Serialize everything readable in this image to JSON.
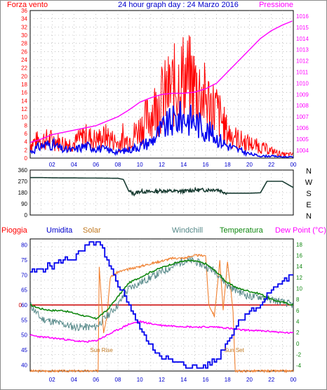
{
  "header": {
    "left_label": "Forza vento",
    "title": "24 hour graph day : 24 Marzo 2016",
    "right_label": "Pressione"
  },
  "chart_data": [
    {
      "type": "line",
      "x_ticks": [
        "02",
        "04",
        "06",
        "08",
        "10",
        "12",
        "14",
        "16",
        "18",
        "20",
        "22",
        "00"
      ],
      "xlim": [
        0,
        24
      ],
      "y_left": {
        "label": "Forza vento",
        "ticks": [
          "0",
          "2",
          "4",
          "6",
          "8",
          "10",
          "12",
          "14",
          "16",
          "18",
          "20",
          "22",
          "24",
          "26",
          "28",
          "30",
          "32",
          "34",
          "36"
        ],
        "ylim": [
          0,
          36
        ]
      },
      "y_right": {
        "label": "Pressione",
        "ticks": [
          "1004",
          "1005",
          "1006",
          "1007",
          "1008",
          "1009",
          "1010",
          "1011",
          "1012",
          "1013",
          "1014",
          "1015",
          "1016"
        ],
        "ylim": [
          1003.3,
          1016.5
        ]
      },
      "colors": {
        "gust": "#ff0000",
        "speed": "#0000ee",
        "pressure": "#ff00ff"
      },
      "series": [
        {
          "key": "gust",
          "x": [
            0,
            1,
            2,
            3,
            4,
            5,
            6,
            7,
            8,
            9,
            10,
            11,
            12,
            13,
            14,
            15,
            16,
            17,
            18,
            19,
            20,
            21,
            22,
            23,
            24
          ],
          "values": [
            4,
            5,
            5,
            4,
            4,
            6,
            5,
            6,
            4,
            5,
            8,
            12,
            16,
            19,
            22,
            20,
            16,
            13,
            7,
            5,
            4,
            3,
            2,
            1,
            1
          ]
        },
        {
          "key": "speed",
          "x": [
            0,
            1,
            2,
            3,
            4,
            5,
            6,
            7,
            8,
            9,
            10,
            11,
            12,
            13,
            14,
            15,
            16,
            17,
            18,
            19,
            20,
            21,
            22,
            23,
            24
          ],
          "values": [
            1.5,
            3,
            3.5,
            2,
            2,
            3,
            2.5,
            2,
            1.5,
            2,
            3,
            4,
            7,
            9,
            10,
            9,
            7,
            5,
            3,
            2,
            1,
            0.5,
            0.5,
            0.3,
            0.3
          ]
        },
        {
          "key": "pressure",
          "x": [
            0,
            1,
            2,
            3,
            4,
            5,
            6,
            7,
            8,
            9,
            10,
            11,
            12,
            13,
            14,
            15,
            16,
            17,
            18,
            19,
            20,
            21,
            22,
            23,
            24
          ],
          "values": [
            1004.7,
            1005.0,
            1005.4,
            1005.6,
            1005.8,
            1006.0,
            1006.2,
            1006.6,
            1007.0,
            1007.6,
            1008.3,
            1008.7,
            1009.0,
            1009.1,
            1009.1,
            1009.2,
            1009.5,
            1010.0,
            1011.0,
            1012.0,
            1013.0,
            1014.0,
            1014.7,
            1015.2,
            1015.6
          ]
        }
      ]
    },
    {
      "type": "line",
      "y_left": {
        "ticks": [
          "0",
          "90",
          "180",
          "270",
          "360"
        ],
        "ylim": [
          0,
          360
        ]
      },
      "y_right_labels": [
        "N",
        "W",
        "S",
        "E",
        "N"
      ],
      "colors": {
        "direction": "#1a3d33"
      },
      "series": [
        {
          "key": "direction",
          "x": [
            0,
            1,
            2,
            3,
            4,
            5,
            6,
            7,
            8,
            8.5,
            9,
            9.5,
            10,
            11,
            12,
            13,
            14,
            15,
            16,
            17,
            18,
            19,
            20,
            21,
            21.6,
            22,
            23,
            24
          ],
          "values": [
            300,
            300,
            298,
            297,
            297,
            296,
            296,
            295,
            294,
            285,
            190,
            170,
            190,
            185,
            195,
            190,
            190,
            200,
            200,
            205,
            175,
            175,
            175,
            178,
            270,
            270,
            270,
            220
          ]
        }
      ]
    },
    {
      "type": "line",
      "legend": [
        "Pioggia",
        "Umidita",
        "Solar",
        "Windchill",
        "Temperatura",
        "Dew Point (°C)"
      ],
      "annotations": [
        "Sun Rise",
        "Sun Set"
      ],
      "annotation_x": [
        6.5,
        18.6
      ],
      "x_ticks": [
        "02",
        "04",
        "06",
        "08",
        "10",
        "12",
        "14",
        "16",
        "18",
        "20",
        "22",
        "00"
      ],
      "xlim": [
        0,
        24
      ],
      "y_left": {
        "ticks": [
          "40",
          "45",
          "50",
          "55",
          "60",
          "65",
          "70",
          "75",
          "80"
        ],
        "ylim": [
          38,
          82
        ],
        "rain_marker": "0"
      },
      "y_right": {
        "ticks": [
          "-4",
          "-2",
          "0",
          "2",
          "4",
          "6",
          "8",
          "10",
          "12",
          "14",
          "16",
          "18"
        ],
        "ylim": [
          -5,
          19
        ]
      },
      "colors": {
        "rain": "#cc0000",
        "humidity": "#0000ee",
        "solar": "#f08030",
        "windchill": "#558888",
        "temperature": "#118811",
        "dewpoint": "#ff00ff"
      },
      "series": [
        {
          "key": "humidity",
          "x": [
            0,
            1,
            2,
            3,
            4,
            5,
            5.5,
            6,
            6.5,
            7,
            8,
            9,
            10,
            11,
            12,
            13,
            14,
            15,
            16,
            17,
            18,
            19,
            20,
            21,
            22,
            23,
            24
          ],
          "values": [
            71,
            72,
            73,
            75,
            76,
            79,
            80,
            81,
            79,
            74,
            67,
            60,
            52,
            46,
            43,
            41,
            40,
            39,
            40,
            42,
            48,
            55,
            58,
            60,
            65,
            68,
            70
          ]
        },
        {
          "key": "solar",
          "x": [
            0,
            6.2,
            6.3,
            6.5,
            6.7,
            7,
            7.3,
            8,
            9,
            10,
            11,
            12,
            13,
            14,
            15,
            16,
            16.3,
            16.8,
            17.3,
            17.6,
            18,
            18.5,
            18.7,
            19,
            24
          ],
          "values": [
            -5,
            -5,
            14,
            8,
            2,
            5,
            12,
            13,
            13.5,
            14,
            14.5,
            15,
            15.5,
            15.5,
            16,
            16,
            7,
            5,
            15,
            6,
            15,
            6,
            -5,
            -5,
            -5
          ]
        },
        {
          "key": "windchill",
          "x": [
            0,
            1,
            2,
            3,
            4,
            5,
            6,
            7,
            8,
            9,
            10,
            11,
            12,
            13,
            14,
            15,
            16,
            17,
            18,
            19,
            20,
            21,
            22,
            23,
            24
          ],
          "values": [
            7,
            4.5,
            4,
            3.5,
            3,
            3,
            3,
            5,
            7,
            10,
            11,
            12,
            13,
            14,
            15,
            15,
            14,
            13,
            10.5,
            9.5,
            8.5,
            8.5,
            8,
            7.5,
            7
          ]
        },
        {
          "key": "temperature",
          "x": [
            0,
            1,
            2,
            3,
            4,
            5,
            6,
            7,
            8,
            9,
            10,
            11,
            12,
            13,
            14,
            15,
            16,
            17,
            18,
            19,
            20,
            21,
            22,
            23,
            24
          ],
          "values": [
            7,
            6.3,
            6,
            6,
            5.5,
            5,
            4.5,
            6,
            8.5,
            11,
            12,
            13,
            13.8,
            14.5,
            15,
            15,
            14.5,
            13,
            11,
            10,
            9.5,
            9,
            8,
            7.5,
            7
          ]
        },
        {
          "key": "dewpoint",
          "x": [
            0,
            1,
            2,
            3,
            4,
            5,
            6,
            7,
            8,
            9,
            10,
            11,
            12,
            13,
            14,
            15,
            16,
            17,
            18,
            19,
            20,
            21,
            22,
            23,
            24
          ],
          "values": [
            1.5,
            1.2,
            1.0,
            0.8,
            0.5,
            0.3,
            0.5,
            1.5,
            2.5,
            3.5,
            4.0,
            3.6,
            3.3,
            3.2,
            3.1,
            3.0,
            3.0,
            3.0,
            2.8,
            2.5,
            2.4,
            2.3,
            2.2,
            2.0,
            1.9
          ]
        },
        {
          "key": "rain",
          "x": [
            0,
            24
          ],
          "values": [
            7,
            7
          ]
        }
      ]
    }
  ]
}
